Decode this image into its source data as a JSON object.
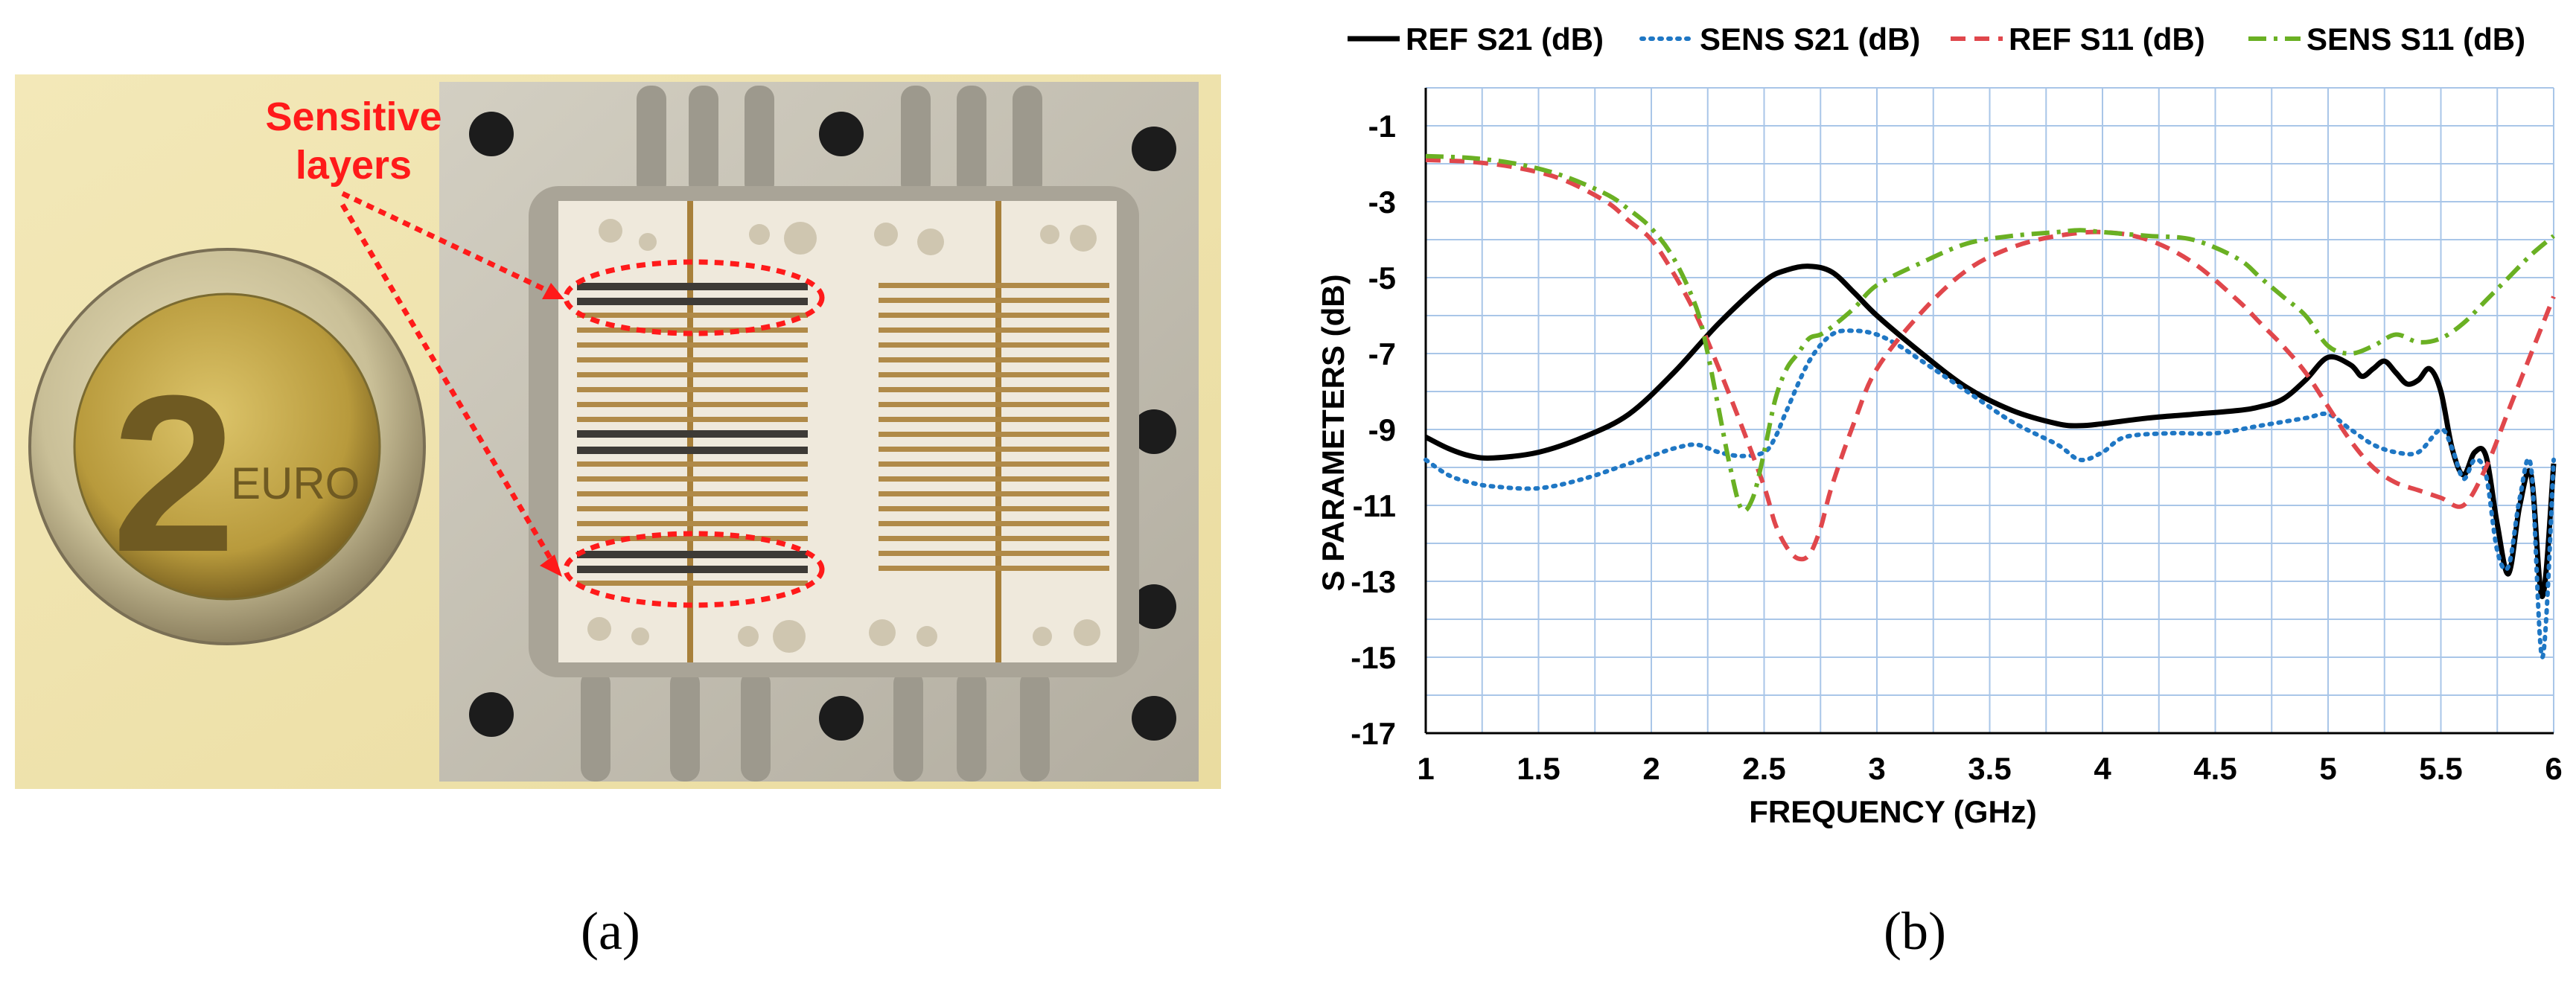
{
  "figure": {
    "panel_a_label": "(a)",
    "panel_b_label": "(b)"
  },
  "photo": {
    "annotation_line1": "Sensitive",
    "annotation_line2": "layers",
    "coin_numeral": "2",
    "coin_text": "EURO",
    "annotation_color": "#ff1a1a"
  },
  "chart_data": {
    "type": "line",
    "xlabel": "FREQUENCY (GHz)",
    "ylabel": "S PARAMETERS (dB)",
    "xlim": [
      1,
      6
    ],
    "ylim": [
      -17,
      0
    ],
    "xticks": [
      1,
      1.5,
      2,
      2.5,
      3,
      3.5,
      4,
      4.5,
      5,
      5.5,
      6
    ],
    "xtick_labels": [
      "1",
      "1.5",
      "2",
      "2.5",
      "3",
      "3.5",
      "4",
      "4.5",
      "5",
      "5.5",
      "6"
    ],
    "yticks": [
      -1,
      -3,
      -5,
      -7,
      -9,
      -11,
      -13,
      -15,
      -17
    ],
    "ytick_labels": [
      "-1",
      "-3",
      "-5",
      "-7",
      "-9",
      "-11",
      "-13",
      "-15",
      "-17"
    ],
    "grid": true,
    "legend_position": "top",
    "series": [
      {
        "name": "REF S21 (dB)",
        "color": "#000000",
        "style": "solid",
        "x": [
          1.0,
          1.1,
          1.2,
          1.3,
          1.5,
          1.7,
          1.9,
          2.1,
          2.3,
          2.5,
          2.6,
          2.7,
          2.8,
          2.9,
          3.0,
          3.2,
          3.4,
          3.6,
          3.8,
          3.9,
          4.0,
          4.2,
          4.4,
          4.6,
          4.7,
          4.8,
          4.9,
          5.0,
          5.1,
          5.15,
          5.2,
          5.25,
          5.3,
          5.35,
          5.4,
          5.45,
          5.5,
          5.55,
          5.6,
          5.65,
          5.7,
          5.75,
          5.8,
          5.85,
          5.9,
          5.95,
          6.0
        ],
        "y": [
          -9.2,
          -9.5,
          -9.7,
          -9.75,
          -9.6,
          -9.2,
          -8.6,
          -7.5,
          -6.2,
          -5.1,
          -4.8,
          -4.7,
          -4.85,
          -5.4,
          -6.0,
          -7.0,
          -7.9,
          -8.5,
          -8.85,
          -8.9,
          -8.85,
          -8.7,
          -8.6,
          -8.5,
          -8.4,
          -8.2,
          -7.7,
          -7.1,
          -7.3,
          -7.6,
          -7.4,
          -7.2,
          -7.5,
          -7.8,
          -7.7,
          -7.4,
          -8.0,
          -9.5,
          -10.2,
          -9.6,
          -9.7,
          -11.5,
          -12.8,
          -11.0,
          -10.2,
          -13.4,
          -9.9
        ]
      },
      {
        "name": "SENS S21 (dB)",
        "color": "#1f77c4",
        "style": "dotted",
        "x": [
          1.0,
          1.1,
          1.2,
          1.3,
          1.5,
          1.7,
          1.9,
          2.0,
          2.1,
          2.2,
          2.3,
          2.4,
          2.5,
          2.55,
          2.6,
          2.7,
          2.8,
          2.9,
          3.0,
          3.1,
          3.2,
          3.4,
          3.6,
          3.8,
          3.9,
          4.0,
          4.1,
          4.3,
          4.5,
          4.7,
          4.9,
          5.0,
          5.1,
          5.2,
          5.3,
          5.4,
          5.5,
          5.55,
          5.6,
          5.65,
          5.7,
          5.75,
          5.8,
          5.85,
          5.9,
          5.95,
          6.0
        ],
        "y": [
          -9.8,
          -10.2,
          -10.4,
          -10.5,
          -10.55,
          -10.3,
          -9.9,
          -9.7,
          -9.5,
          -9.4,
          -9.6,
          -9.7,
          -9.6,
          -9.2,
          -8.5,
          -7.2,
          -6.5,
          -6.4,
          -6.5,
          -6.8,
          -7.2,
          -8.0,
          -8.8,
          -9.4,
          -9.8,
          -9.6,
          -9.2,
          -9.1,
          -9.1,
          -8.9,
          -8.7,
          -8.6,
          -9.0,
          -9.4,
          -9.6,
          -9.6,
          -9.0,
          -9.5,
          -10.3,
          -9.8,
          -10.2,
          -12.2,
          -12.6,
          -10.8,
          -10.0,
          -15.0,
          -9.8
        ]
      },
      {
        "name": "REF S11 (dB)",
        "color": "#e0474c",
        "style": "dashed",
        "x": [
          1.0,
          1.2,
          1.4,
          1.6,
          1.8,
          1.9,
          2.0,
          2.1,
          2.2,
          2.3,
          2.4,
          2.5,
          2.55,
          2.6,
          2.65,
          2.7,
          2.75,
          2.8,
          2.9,
          3.0,
          3.2,
          3.4,
          3.6,
          3.8,
          4.0,
          4.2,
          4.4,
          4.6,
          4.7,
          4.8,
          4.9,
          5.0,
          5.1,
          5.2,
          5.3,
          5.4,
          5.5,
          5.6,
          5.7,
          5.8,
          5.9,
          6.0
        ],
        "y": [
          -1.9,
          -1.95,
          -2.1,
          -2.4,
          -3.0,
          -3.5,
          -4.0,
          -4.9,
          -6.0,
          -7.4,
          -8.9,
          -10.5,
          -11.5,
          -12.1,
          -12.4,
          -12.3,
          -11.6,
          -10.5,
          -8.8,
          -7.4,
          -5.9,
          -4.8,
          -4.2,
          -3.9,
          -3.8,
          -4.0,
          -4.6,
          -5.6,
          -6.2,
          -6.8,
          -7.5,
          -8.4,
          -9.3,
          -10.0,
          -10.4,
          -10.6,
          -10.8,
          -11.0,
          -10.0,
          -8.5,
          -7.0,
          -5.5
        ]
      },
      {
        "name": "SENS S11 (dB)",
        "color": "#6ab023",
        "style": "dashdot",
        "x": [
          1.0,
          1.2,
          1.4,
          1.6,
          1.8,
          1.9,
          2.0,
          2.1,
          2.2,
          2.25,
          2.3,
          2.35,
          2.4,
          2.45,
          2.5,
          2.55,
          2.6,
          2.65,
          2.7,
          2.75,
          2.8,
          2.9,
          3.0,
          3.2,
          3.4,
          3.6,
          3.8,
          3.9,
          4.0,
          4.2,
          4.4,
          4.6,
          4.7,
          4.8,
          4.9,
          5.0,
          5.1,
          5.2,
          5.3,
          5.4,
          5.5,
          5.6,
          5.7,
          5.8,
          5.9,
          6.0
        ],
        "y": [
          -1.8,
          -1.85,
          -2.0,
          -2.3,
          -2.8,
          -3.2,
          -3.7,
          -4.5,
          -5.8,
          -7.0,
          -8.5,
          -10.0,
          -11.1,
          -10.8,
          -9.6,
          -8.2,
          -7.4,
          -7.0,
          -6.6,
          -6.5,
          -6.3,
          -5.8,
          -5.2,
          -4.6,
          -4.1,
          -3.9,
          -3.8,
          -3.75,
          -3.8,
          -3.9,
          -4.0,
          -4.5,
          -5.0,
          -5.5,
          -6.0,
          -6.8,
          -7.0,
          -6.8,
          -6.5,
          -6.7,
          -6.6,
          -6.2,
          -5.6,
          -5.0,
          -4.4,
          -3.9
        ]
      }
    ]
  }
}
